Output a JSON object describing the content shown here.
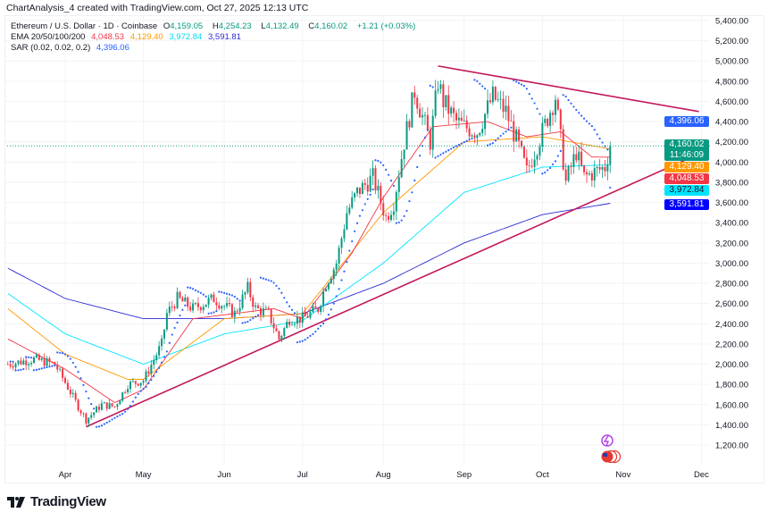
{
  "caption": "ChartAnalysis_4 created with TradingView.com, Oct 27, 2025 12:13 UTC",
  "legend": {
    "symbol": "Ethereum / U.S. Dollar · 1D · Coinbase",
    "open_label": "O",
    "open": "4,159.05",
    "high_label": "H",
    "high": "4,254.23",
    "low_label": "L",
    "low": "4,132.49",
    "close_label": "C",
    "close": "4,160.02",
    "change": "+1.21 (+0.03%)",
    "ema_label": "EMA 20/50/100/200",
    "ema20": "4,048.53",
    "ema50": "4,129.40",
    "ema100": "3,972.84",
    "ema200": "3,591.81",
    "sar_label": "SAR (0.02, 0.02, 0.2)",
    "sar": "4,396.06"
  },
  "price_tags": {
    "sar": "4,396.06",
    "close": "4,160.02",
    "countdown": "11:46:09",
    "ema50": "4,129.40",
    "ema20": "4,048.53",
    "ema100": "3,972.84",
    "ema200": "3,591.81"
  },
  "colors": {
    "up": "#089981",
    "down": "#f23645",
    "ema20": "#f23645",
    "ema50": "#ff9800",
    "ema100": "#00e5ff",
    "ema200": "#2b2bd6",
    "sar": "#2962ff",
    "trendline": "#c2185b"
  },
  "icons": [
    "tradingview-logo-icon",
    "lightning-event-icon",
    "us-flag-event-icon"
  ],
  "brand": "TradingView",
  "chart_data": {
    "type": "candlestick",
    "title": "Ethereum / U.S. Dollar · 1D · Coinbase",
    "ylim": [
      1100,
      5500
    ],
    "y_ticks": [
      1200,
      1400,
      1600,
      1800,
      2000,
      2200,
      2400,
      2600,
      2800,
      3000,
      3200,
      3400,
      3600,
      3800,
      4000,
      4200,
      4400,
      4600,
      4800,
      5000,
      5200,
      5400
    ],
    "x_ticks": [
      "Apr",
      "May",
      "Jun",
      "Jul",
      "Aug",
      "Sep",
      "Oct",
      "Nov",
      "Dec"
    ],
    "grid": true,
    "close_keypoints": [
      [
        "2025-03-10",
        2000
      ],
      [
        "2025-03-20",
        2050
      ],
      [
        "2025-03-28",
        2000
      ],
      [
        "2025-04-01",
        1820
      ],
      [
        "2025-04-06",
        1580
      ],
      [
        "2025-04-09",
        1450
      ],
      [
        "2025-04-15",
        1600
      ],
      [
        "2025-04-20",
        1580
      ],
      [
        "2025-04-25",
        1800
      ],
      [
        "2025-05-01",
        1840
      ],
      [
        "2025-05-08",
        2200
      ],
      [
        "2025-05-10",
        2500
      ],
      [
        "2025-05-14",
        2650
      ],
      [
        "2025-05-20",
        2550
      ],
      [
        "2025-05-28",
        2650
      ],
      [
        "2025-06-05",
        2500
      ],
      [
        "2025-06-10",
        2750
      ],
      [
        "2025-06-13",
        2550
      ],
      [
        "2025-06-18",
        2500
      ],
      [
        "2025-06-22",
        2250
      ],
      [
        "2025-06-26",
        2450
      ],
      [
        "2025-07-01",
        2450
      ],
      [
        "2025-07-07",
        2550
      ],
      [
        "2025-07-10",
        2800
      ],
      [
        "2025-07-14",
        3000
      ],
      [
        "2025-07-18",
        3500
      ],
      [
        "2025-07-22",
        3700
      ],
      [
        "2025-07-28",
        3850
      ],
      [
        "2025-08-02",
        3450
      ],
      [
        "2025-08-05",
        3600
      ],
      [
        "2025-08-09",
        4200
      ],
      [
        "2025-08-13",
        4700
      ],
      [
        "2025-08-19",
        4200
      ],
      [
        "2025-08-22",
        4800
      ],
      [
        "2025-08-24",
        4600
      ],
      [
        "2025-08-29",
        4400
      ],
      [
        "2025-09-01",
        4350
      ],
      [
        "2025-09-06",
        4300
      ],
      [
        "2025-09-12",
        4650
      ],
      [
        "2025-09-17",
        4500
      ],
      [
        "2025-09-22",
        4150
      ],
      [
        "2025-09-25",
        3900
      ],
      [
        "2025-10-01",
        4300
      ],
      [
        "2025-10-06",
        4650
      ],
      [
        "2025-10-10",
        3800
      ],
      [
        "2025-10-14",
        4100
      ],
      [
        "2025-10-17",
        3850
      ],
      [
        "2025-10-21",
        3900
      ],
      [
        "2025-10-25",
        3950
      ],
      [
        "2025-10-27",
        4160
      ]
    ],
    "ema_keypoints": {
      "ema20": [
        [
          "2025-03-10",
          2250
        ],
        [
          "2025-04-01",
          1950
        ],
        [
          "2025-04-20",
          1620
        ],
        [
          "2025-05-01",
          1750
        ],
        [
          "2025-05-20",
          2450
        ],
        [
          "2025-06-20",
          2550
        ],
        [
          "2025-07-01",
          2450
        ],
        [
          "2025-07-20",
          3100
        ],
        [
          "2025-08-01",
          3650
        ],
        [
          "2025-08-20",
          4350
        ],
        [
          "2025-09-10",
          4400
        ],
        [
          "2025-09-25",
          4250
        ],
        [
          "2025-10-08",
          4300
        ],
        [
          "2025-10-20",
          4050
        ],
        [
          "2025-10-27",
          4048.53
        ]
      ],
      "ema50": [
        [
          "2025-03-10",
          2550
        ],
        [
          "2025-04-01",
          2100
        ],
        [
          "2025-04-25",
          1850
        ],
        [
          "2025-05-01",
          1850
        ],
        [
          "2025-06-01",
          2450
        ],
        [
          "2025-07-01",
          2500
        ],
        [
          "2025-08-01",
          3500
        ],
        [
          "2025-09-01",
          4200
        ],
        [
          "2025-10-01",
          4250
        ],
        [
          "2025-10-27",
          4129.4
        ]
      ],
      "ema100": [
        [
          "2025-03-10",
          2700
        ],
        [
          "2025-04-01",
          2300
        ],
        [
          "2025-05-01",
          2000
        ],
        [
          "2025-06-01",
          2300
        ],
        [
          "2025-07-01",
          2430
        ],
        [
          "2025-08-01",
          3000
        ],
        [
          "2025-09-01",
          3700
        ],
        [
          "2025-10-01",
          3950
        ],
        [
          "2025-10-27",
          3972.84
        ]
      ],
      "ema200": [
        [
          "2025-03-10",
          2950
        ],
        [
          "2025-04-01",
          2650
        ],
        [
          "2025-05-01",
          2450
        ],
        [
          "2025-06-01",
          2450
        ],
        [
          "2025-07-01",
          2500
        ],
        [
          "2025-08-01",
          2800
        ],
        [
          "2025-09-01",
          3200
        ],
        [
          "2025-10-01",
          3480
        ],
        [
          "2025-10-27",
          3591.81
        ]
      ]
    },
    "trendlines": [
      {
        "from": [
          "2025-08-22",
          4950
        ],
        "to": [
          "2025-11-30",
          4500
        ]
      },
      {
        "from": [
          "2025-04-09",
          1380
        ],
        "to": [
          "2025-11-30",
          4080
        ]
      }
    ]
  }
}
